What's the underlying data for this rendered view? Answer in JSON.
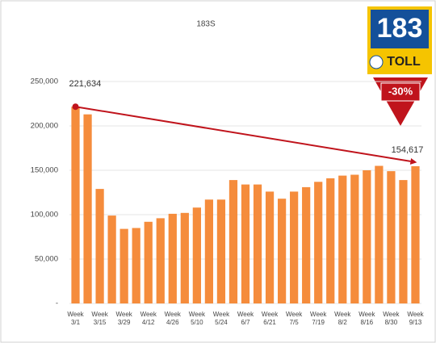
{
  "chart_data": {
    "type": "bar",
    "title": "183S",
    "categories": [
      "Week 3/1",
      null,
      "Week 3/15",
      null,
      "Week 3/29",
      null,
      "Week 4/12",
      null,
      "Week 4/26",
      null,
      "Week 5/10",
      null,
      "Week 5/24",
      null,
      "Week 6/7",
      null,
      "Week 6/21",
      null,
      "Week 7/5",
      null,
      "Week 7/19",
      null,
      "Week 8/2",
      null,
      "Week 8/16",
      null,
      "Week 8/30",
      null,
      "Week 9/13"
    ],
    "values": [
      221634,
      213000,
      129000,
      99000,
      84000,
      85000,
      92000,
      96000,
      101000,
      102000,
      108000,
      117000,
      117000,
      139000,
      134000,
      134000,
      126000,
      118000,
      126000,
      131000,
      137000,
      141000,
      144000,
      145000,
      150000,
      155000,
      149000,
      139000,
      154617
    ],
    "value_labels": [
      "221,634",
      null,
      null,
      null,
      null,
      null,
      null,
      null,
      null,
      null,
      null,
      null,
      null,
      null,
      null,
      null,
      null,
      null,
      null,
      null,
      null,
      null,
      null,
      null,
      null,
      null,
      null,
      null,
      "154,617"
    ],
    "color": "#f58c3c",
    "trend_color": "#c0141c",
    "ylim": [
      0,
      270000
    ],
    "yticks": [
      {
        "value": 0,
        "label": "-"
      },
      {
        "value": 50000,
        "label": "50,000"
      },
      {
        "value": 100000,
        "label": "100,000"
      },
      {
        "value": 150000,
        "label": "150,000"
      },
      {
        "value": 200000,
        "label": "200,000"
      },
      {
        "value": 250000,
        "label": "250,000"
      }
    ],
    "grid": true,
    "annotation": "-30%",
    "logo": {
      "number": "183",
      "text": "TOLL"
    }
  }
}
